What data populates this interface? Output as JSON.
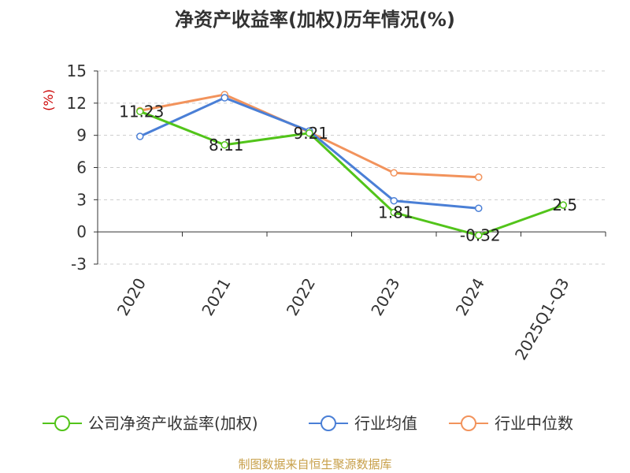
{
  "chart_data": {
    "type": "line",
    "title": "净资产收益率(加权)历年情况(%)",
    "ylabel": "(%)",
    "xlabel": "",
    "categories": [
      "2020",
      "2021",
      "2022",
      "2023",
      "2024",
      "2025Q1-Q3"
    ],
    "y_ticks": [
      15,
      12,
      9,
      6,
      3,
      0,
      -3
    ],
    "y_tick_labels": [
      "15",
      "12",
      "9",
      "6",
      "3",
      "0",
      "-3"
    ],
    "ylim": [
      -3,
      15
    ],
    "grid": true,
    "legend_position": "bottom",
    "series": [
      {
        "name": "公司净资产收益率(加权)",
        "color": "#52c41a",
        "values": [
          11.23,
          8.11,
          9.21,
          1.81,
          -0.32,
          2.5
        ],
        "labels": [
          "11.23",
          "8.11",
          "9.21",
          "1.81",
          "-0.32",
          "2.5"
        ]
      },
      {
        "name": "行业均值",
        "color": "#4a7fd6",
        "values": [
          8.9,
          12.5,
          9.4,
          2.9,
          2.2,
          null
        ],
        "labels": []
      },
      {
        "name": "行业中位数",
        "color": "#f2935c",
        "values": [
          11.3,
          12.8,
          9.3,
          5.5,
          5.1,
          null
        ],
        "labels": []
      }
    ]
  },
  "source": {
    "text": "制图数据来自恒生聚源数据库",
    "color": "#c8a04a"
  }
}
